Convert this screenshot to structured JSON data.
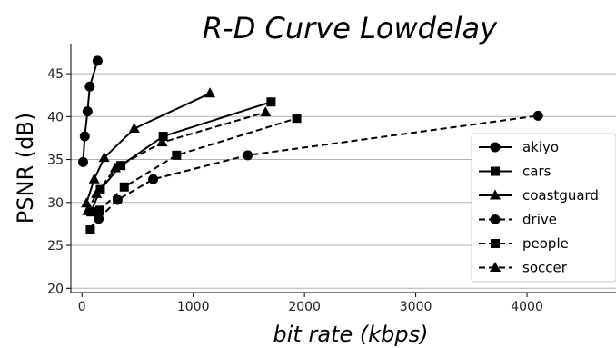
{
  "chart_data": {
    "type": "line",
    "title": "R-D Curve Lowdelay",
    "xlabel": "bit rate (kbps)",
    "ylabel": "PSNR (dB)",
    "xlim": [
      -100,
      4800
    ],
    "ylim": [
      19.5,
      48.5
    ],
    "xticks": [
      0,
      1000,
      2000,
      3000,
      4000
    ],
    "yticks": [
      20,
      25,
      30,
      35,
      40,
      45
    ],
    "grid": "horizontal",
    "legend_position": "right",
    "series": [
      {
        "name": "akiyo",
        "line": "solid",
        "marker": "circle",
        "x": [
          10,
          25,
          50,
          70,
          140
        ],
        "y": [
          34.7,
          37.7,
          40.6,
          43.5,
          46.5
        ]
      },
      {
        "name": "cars",
        "line": "solid",
        "marker": "square",
        "x": [
          80,
          165,
          350,
          730,
          1700
        ],
        "y": [
          28.9,
          31.5,
          34.3,
          37.7,
          41.7
        ]
      },
      {
        "name": "coastguard",
        "line": "solid",
        "marker": "triangle",
        "x": [
          40,
          110,
          200,
          470,
          1150
        ],
        "y": [
          29.9,
          32.7,
          35.2,
          38.6,
          42.7
        ]
      },
      {
        "name": "drive",
        "line": "dashed",
        "marker": "circle",
        "x": [
          150,
          320,
          640,
          1490,
          4100
        ],
        "y": [
          28.1,
          30.3,
          32.7,
          35.5,
          40.1
        ]
      },
      {
        "name": "people",
        "line": "dashed",
        "marker": "square",
        "x": [
          75,
          160,
          380,
          850,
          1930
        ],
        "y": [
          26.8,
          29.1,
          31.8,
          35.5,
          39.8
        ]
      },
      {
        "name": "soccer",
        "line": "dashed",
        "marker": "triangle",
        "x": [
          50,
          130,
          300,
          720,
          1650
        ],
        "y": [
          29.0,
          31.0,
          34.0,
          37.0,
          40.5
        ]
      }
    ],
    "color": "#000000",
    "grid_color": "#b0b0b0"
  }
}
